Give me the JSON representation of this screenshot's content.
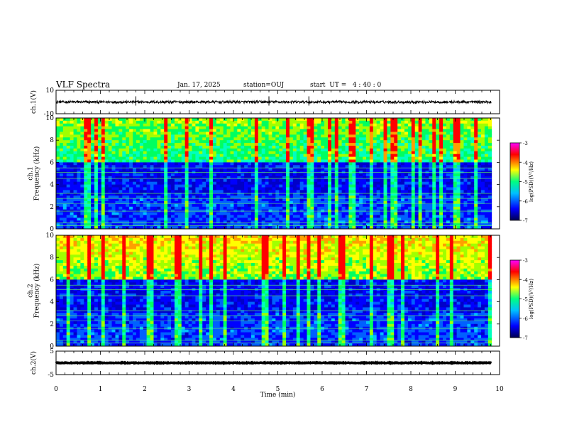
{
  "header": {
    "title": "VLF Spectra",
    "date": "Jan. 17, 2025",
    "station": "station=OUJ",
    "start_ut": "start  UT =   4 : 40 : 0"
  },
  "chart_data": [
    {
      "type": "line",
      "panel": "waveform-ch1",
      "ylabel": "ch.1(V)",
      "yticks": [
        "10",
        "-10"
      ],
      "ylim": [
        -10,
        10
      ],
      "xlim": [
        0,
        10
      ],
      "data_extent_min": 9.82,
      "series": [
        {
          "values": [
            [
              0,
              0
            ],
            [
              9.82,
              0
            ]
          ]
        }
      ]
    },
    {
      "type": "heatmap",
      "panel": "spectrogram-ch1",
      "ylabel": "ch.1\nFrequency (kHz)",
      "yticks": [
        "0",
        "2",
        "4",
        "6",
        "8",
        "10"
      ],
      "ylim": [
        0,
        10
      ],
      "xlim": [
        0,
        10
      ],
      "colorbar": {
        "label": "log(PSD)(V²/Hz)",
        "ticks": [
          "-3",
          "-4",
          "-5",
          "-6",
          "-7"
        ],
        "range": [
          -7,
          -3
        ]
      }
    },
    {
      "type": "heatmap",
      "panel": "spectrogram-ch2",
      "ylabel": "ch.2\nFrequency (kHz)",
      "yticks": [
        "0",
        "2",
        "4",
        "6",
        "8",
        "10"
      ],
      "ylim": [
        0,
        10
      ],
      "xlim": [
        0,
        10
      ],
      "colorbar": {
        "label": "log(PSD)(V²/Hz)",
        "ticks": [
          "-3",
          "-4",
          "-5",
          "-6",
          "-7"
        ],
        "range": [
          -7,
          -3
        ]
      }
    },
    {
      "type": "line",
      "panel": "waveform-ch2",
      "ylabel": "ch.2(V)",
      "yticks": [
        "5",
        "-5"
      ],
      "ylim": [
        -5,
        5
      ],
      "xlim": [
        0,
        10
      ],
      "series": [
        {
          "values": [
            [
              0,
              0
            ],
            [
              9.82,
              0
            ]
          ]
        }
      ]
    }
  ],
  "xaxis": {
    "label": "Time (min)",
    "ticks": [
      "0",
      "1",
      "2",
      "3",
      "4",
      "5",
      "6",
      "7",
      "8",
      "9",
      "10"
    ]
  },
  "colors": {
    "axes": "#000000",
    "colormap": [
      "#000050",
      "#0000ff",
      "#00c0ff",
      "#00ff80",
      "#ffff00",
      "#ff0000",
      "#ff00ff"
    ]
  }
}
